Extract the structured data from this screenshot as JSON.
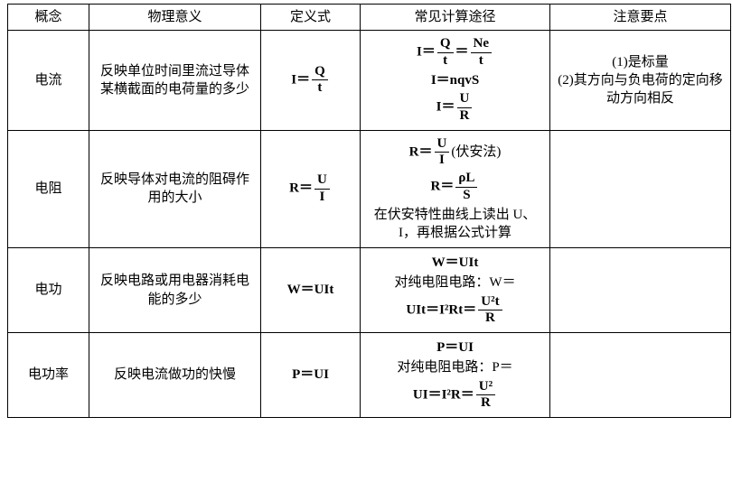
{
  "headers": {
    "concept": "概念",
    "meaning": "物理意义",
    "definition": "定义式",
    "calc": "常见计算途径",
    "note": "注意要点"
  },
  "rows": {
    "current": {
      "concept": "电流",
      "meaning": "反映单位时间里流过导体某横截面的电荷量的多少",
      "def_lhs": "I＝",
      "def_frac_num": "Q",
      "def_frac_den": "t",
      "calc_l1_pre": "I＝",
      "calc_l1_f1n": "Q",
      "calc_l1_f1d": "t",
      "calc_l1_mid": "＝",
      "calc_l1_f2n": "Ne",
      "calc_l1_f2d": "t",
      "calc_l2": "I＝nqvS",
      "calc_l3_pre": "I＝",
      "calc_l3_fn": "U",
      "calc_l3_fd": "R",
      "note_l1": "(1)是标量",
      "note_l2": "(2)其方向与负电荷的定向移动方向相反"
    },
    "resistance": {
      "concept": "电阻",
      "meaning": "反映导体对电流的阻碍作用的大小",
      "def_lhs": "R＝",
      "def_frac_num": "U",
      "def_frac_den": "I",
      "calc_l1_pre": "R＝",
      "calc_l1_fn": "U",
      "calc_l1_fd": "I",
      "calc_l1_tail": "(伏安法)",
      "calc_l2_pre": "R＝",
      "calc_l2_fn": "ρL",
      "calc_l2_fd": "S",
      "calc_l3": "在伏安特性曲线上读出 U、I，再根据公式计算",
      "note": ""
    },
    "work": {
      "concept": "电功",
      "meaning": "反映电路或用电器消耗电能的多少",
      "def": "W＝UIt",
      "calc_l1": "W＝UIt",
      "calc_l2_pre": "对纯电阻电路：W＝",
      "calc_l3_pre": "UIt＝I²Rt＝",
      "calc_l3_fn": "U²t",
      "calc_l3_fd": "R",
      "note": ""
    },
    "power": {
      "concept": "电功率",
      "meaning": "反映电流做功的快慢",
      "def": "P＝UI",
      "calc_l1": "P＝UI",
      "calc_l2_pre": "对纯电阻电路：P＝",
      "calc_l3_pre": "UI＝I²R＝",
      "calc_l3_fn": "U²",
      "calc_l3_fd": "R",
      "note": ""
    }
  }
}
